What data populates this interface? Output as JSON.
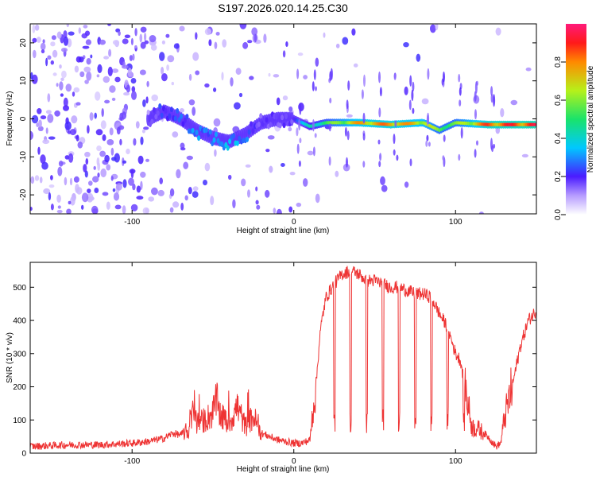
{
  "figure_title": "S197.2026.020.14.25.C30",
  "chart_data": [
    {
      "type": "heatmap",
      "title": "S197.2026.020.14.25.C30",
      "xlabel": "Height of straight line (km)",
      "ylabel": "Frequency (Hz)",
      "xlim": [
        -163,
        150
      ],
      "ylim": [
        -25,
        25
      ],
      "xticks": [
        -100,
        0,
        100
      ],
      "yticks": [
        -20,
        -10,
        0,
        10,
        20
      ],
      "colorbar": {
        "label": "Normalized spectral amplitude",
        "range": [
          0,
          1
        ],
        "ticks": [
          "0.0",
          "0.2",
          "0.4",
          "0.6",
          "0.8"
        ],
        "tick_values": [
          0.0,
          0.2,
          0.4,
          0.6,
          0.8
        ]
      },
      "ridge": {
        "description_points_x": [
          -90,
          -80,
          -70,
          -60,
          -50,
          -40,
          -30,
          -20,
          -10,
          0,
          10,
          20,
          40,
          60,
          80,
          90,
          100,
          120,
          150
        ],
        "frequency_hz": [
          0,
          2,
          0,
          -3,
          -5,
          -6,
          -4,
          -1,
          0,
          0,
          -2,
          -1,
          -1,
          -1.5,
          -1,
          -3,
          -1,
          -1.5,
          -1.5
        ],
        "amplitude": [
          0.15,
          0.3,
          0.3,
          0.35,
          0.35,
          0.4,
          0.35,
          0.2,
          0.2,
          0.25,
          0.45,
          0.55,
          0.8,
          0.85,
          0.75,
          0.6,
          0.6,
          0.9,
          0.95
        ]
      }
    },
    {
      "type": "line",
      "xlabel": "Height of straight line (km)",
      "ylabel": "SNR (10 * v/v)",
      "xlim": [
        -163,
        150
      ],
      "ylim": [
        0,
        575
      ],
      "xticks": [
        -100,
        0,
        100
      ],
      "yticks": [
        0,
        100,
        200,
        300,
        400,
        500
      ],
      "line_color": "#ee3333",
      "series": [
        {
          "name": "SNR",
          "x": [
            -163,
            -140,
            -120,
            -100,
            -90,
            -80,
            -75,
            -70,
            -65,
            -62,
            -60,
            -55,
            -50,
            -48,
            -45,
            -40,
            -35,
            -30,
            -25,
            -20,
            -15,
            -10,
            -5,
            0,
            5,
            10,
            12,
            14,
            16,
            18,
            20,
            25,
            30,
            35,
            40,
            45,
            50,
            55,
            60,
            65,
            70,
            75,
            80,
            85,
            90,
            95,
            100,
            103,
            106,
            110,
            115,
            120,
            125,
            128,
            130,
            135,
            140,
            145,
            150
          ],
          "y": [
            20,
            25,
            25,
            30,
            35,
            45,
            60,
            55,
            70,
            130,
            90,
            100,
            120,
            160,
            110,
            90,
            140,
            80,
            110,
            60,
            50,
            40,
            35,
            30,
            30,
            40,
            140,
            220,
            350,
            420,
            470,
            510,
            540,
            550,
            540,
            520,
            520,
            510,
            500,
            500,
            490,
            480,
            480,
            470,
            420,
            380,
            300,
            280,
            200,
            80,
            70,
            50,
            20,
            30,
            100,
            200,
            320,
            400,
            430
          ]
        }
      ]
    }
  ]
}
